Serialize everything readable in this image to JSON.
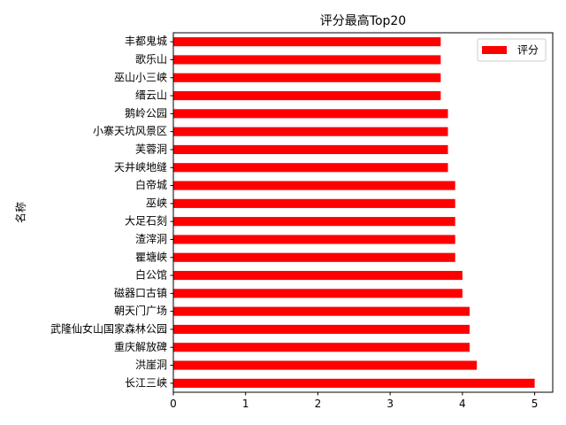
{
  "chart_data": {
    "type": "bar",
    "orientation": "horizontal",
    "title": "评分最高Top20",
    "xlabel": "",
    "ylabel": "名称",
    "xlim": [
      0,
      5.25
    ],
    "xticks": [
      0,
      1,
      2,
      3,
      4,
      5
    ],
    "grid": false,
    "legend_position": "top-right",
    "bar_color": "#ff0000",
    "categories": [
      "长江三峡",
      "洪崖洞",
      "重庆解放碑",
      "武隆仙女山国家森林公园",
      "朝天门广场",
      "磁器口古镇",
      "白公馆",
      "瞿塘峡",
      "渣滓洞",
      "大足石刻",
      "巫峡",
      "白帝城",
      "天井峡地缝",
      "芙蓉洞",
      "小寨天坑风景区",
      "鹅岭公园",
      "缙云山",
      "巫山小三峡",
      "歌乐山",
      "丰都鬼城"
    ],
    "series": [
      {
        "name": "评分",
        "values": [
          5.0,
          4.2,
          4.1,
          4.1,
          4.1,
          4.0,
          4.0,
          3.9,
          3.9,
          3.9,
          3.9,
          3.9,
          3.8,
          3.8,
          3.8,
          3.8,
          3.7,
          3.7,
          3.7,
          3.7
        ]
      }
    ]
  }
}
